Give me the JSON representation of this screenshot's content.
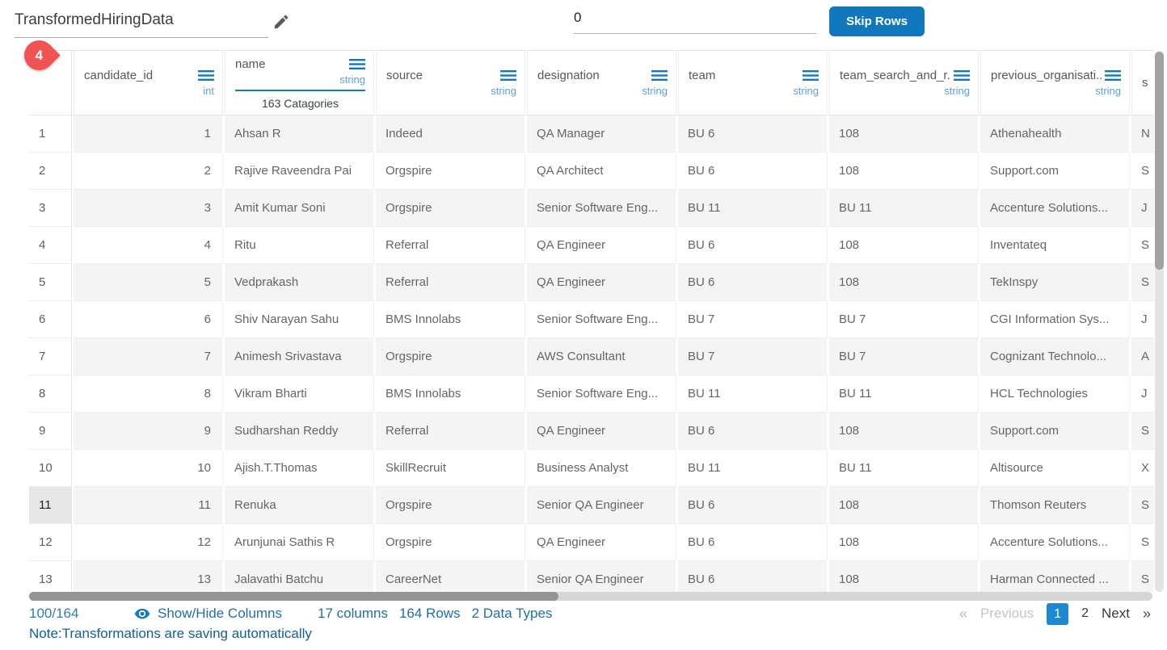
{
  "colors": {
    "accent_blue": "#1178be",
    "type_label_blue": "#5fa0da",
    "bar_blue": "#1479cb",
    "badge_red": "#f15353",
    "footer_blue": "#1f6ea9",
    "frac_blue": "#2e7cb8",
    "note_blue": "#14608f",
    "page_active_bg": "#1e88d4"
  },
  "header": {
    "title": "TransformedHiringData",
    "skip_input_value": "0",
    "skip_button_label": "Skip Rows",
    "badge_count": "4"
  },
  "table": {
    "columns": [
      {
        "name": "candidate_id",
        "type": "int",
        "menu_icon": true,
        "align": "right"
      },
      {
        "name": "name",
        "type": "string",
        "menu_icon": true,
        "bar": true,
        "categories_label": "163 Catagories"
      },
      {
        "name": "source",
        "type": "string",
        "menu_icon": true
      },
      {
        "name": "designation",
        "type": "string",
        "menu_icon": true
      },
      {
        "name": "team",
        "type": "string",
        "menu_icon": true
      },
      {
        "name": "team_search_and_r...",
        "type": "string",
        "menu_icon": true
      },
      {
        "name": "previous_organisati...",
        "type": "string",
        "menu_icon": true
      },
      {
        "name": "s",
        "type": "",
        "menu_icon": false,
        "partial": true
      }
    ],
    "rows": [
      {
        "index": "1",
        "highlighted": false,
        "cells": [
          "1",
          "Ahsan R",
          "Indeed",
          "QA Manager",
          "BU 6",
          "108",
          "Athenahealth",
          "N"
        ]
      },
      {
        "index": "2",
        "highlighted": false,
        "cells": [
          "2",
          "Rajive Raveendra Pai",
          "Orgspire",
          "QA Architect",
          "BU 6",
          "108",
          "Support.com",
          "S"
        ]
      },
      {
        "index": "3",
        "highlighted": false,
        "cells": [
          "3",
          "Amit Kumar Soni",
          "Orgspire",
          "Senior Software Eng...",
          "BU 11",
          "BU 11",
          "Accenture Solutions...",
          "J"
        ]
      },
      {
        "index": "4",
        "highlighted": false,
        "cells": [
          "4",
          "Ritu",
          "Referral",
          "QA Engineer",
          "BU 6",
          "108",
          "Inventateq",
          "S"
        ]
      },
      {
        "index": "5",
        "highlighted": false,
        "cells": [
          "5",
          "Vedprakash",
          "Referral",
          "QA Engineer",
          "BU 6",
          "108",
          "TekInspy",
          "S"
        ]
      },
      {
        "index": "6",
        "highlighted": false,
        "cells": [
          "6",
          "Shiv Narayan Sahu",
          "BMS Innolabs",
          "Senior Software Eng...",
          "BU 7",
          "BU 7",
          "CGI Information Sys...",
          "J"
        ]
      },
      {
        "index": "7",
        "highlighted": false,
        "cells": [
          "7",
          "Animesh Srivastava",
          "Orgspire",
          "AWS Consultant",
          "BU 7",
          "BU 7",
          "Cognizant Technolo...",
          "A"
        ]
      },
      {
        "index": "8",
        "highlighted": false,
        "cells": [
          "8",
          "Vikram Bharti",
          "BMS Innolabs",
          "Senior Software Eng...",
          "BU 11",
          "BU 11",
          "HCL Technologies",
          "J"
        ]
      },
      {
        "index": "9",
        "highlighted": false,
        "cells": [
          "9",
          "Sudharshan Reddy",
          "Referral",
          "QA Engineer",
          "BU 6",
          "108",
          "Support.com",
          "S"
        ]
      },
      {
        "index": "10",
        "highlighted": false,
        "cells": [
          "10",
          "Ajish.T.Thomas",
          "SkillRecruit",
          "Business Analyst",
          "BU 11",
          "BU 11",
          "Altisource",
          "X"
        ]
      },
      {
        "index": "11",
        "highlighted": true,
        "cells": [
          "11",
          "Renuka",
          "Orgspire",
          "Senior QA Engineer",
          "BU 6",
          "108",
          "Thomson Reuters",
          "S"
        ]
      },
      {
        "index": "12",
        "highlighted": false,
        "cells": [
          "12",
          "Arunjunai Sathis R",
          "Orgspire",
          "QA Engineer",
          "BU 6",
          "108",
          "Accenture Solutions...",
          "S"
        ]
      },
      {
        "index": "13",
        "highlighted": false,
        "cells": [
          "13",
          "Jalavathi Batchu",
          "CareerNet",
          "Senior QA Engineer",
          "BU 6",
          "108",
          "Harman Connected ...",
          "S"
        ]
      }
    ]
  },
  "footer": {
    "page_fraction": "100/164",
    "show_hide_label": "Show/Hide Columns",
    "stats": [
      "17 columns",
      "164 Rows",
      "2 Data Types"
    ],
    "pagination": {
      "prev_symbol": "«",
      "previous_label": "Previous",
      "pages": [
        "1",
        "2"
      ],
      "active_page": "1",
      "next_label": "Next",
      "next_symbol": "»"
    },
    "note": "Note:Transformations are saving automatically"
  }
}
